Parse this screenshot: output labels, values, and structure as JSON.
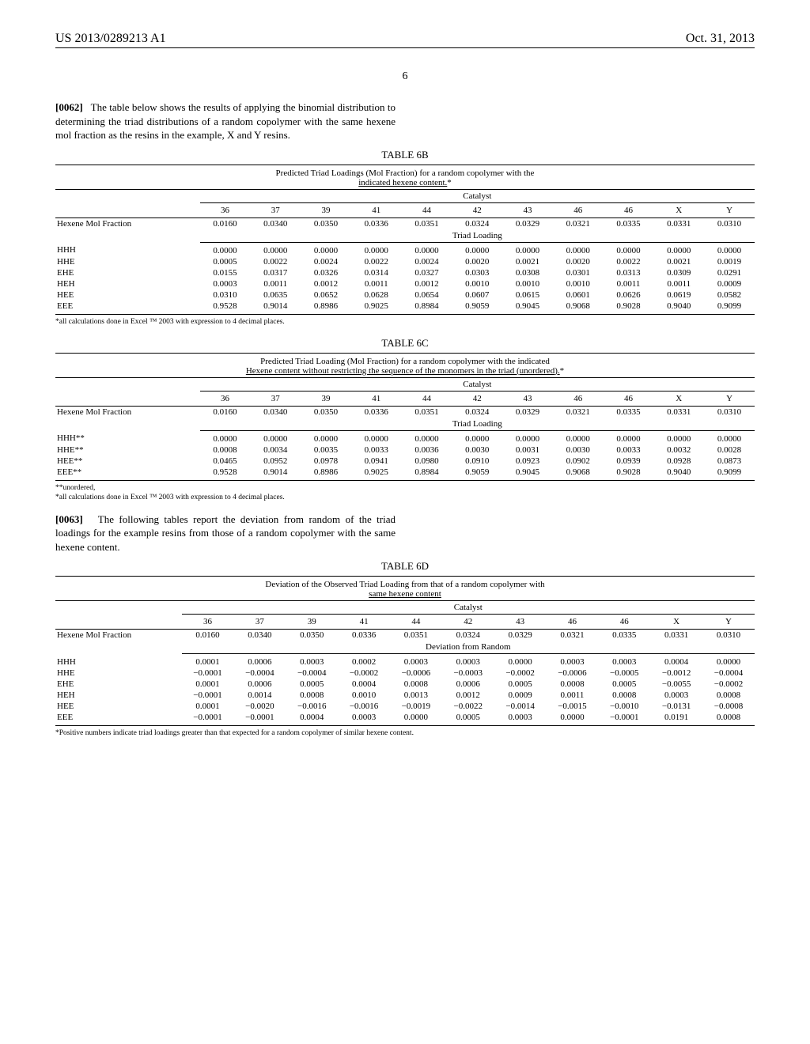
{
  "header": {
    "patent": "US 2013/0289213 A1",
    "date": "Oct. 31, 2013",
    "page": "6"
  },
  "para62": {
    "num": "[0062]",
    "text": "The table below shows the results of applying the binomial distribution to determining the triad distributions of a random copolymer with the same hexene mol fraction as the resins in the example, X and Y resins."
  },
  "para63": {
    "num": "[0063]",
    "text": "The following tables report the deviation from random of the triad loadings for the example resins from those of a random copolymer with the same hexene content."
  },
  "columns": [
    "36",
    "37",
    "39",
    "41",
    "44",
    "42",
    "43",
    "46",
    "46",
    "X",
    "Y"
  ],
  "hexene_label": "Hexene Mol Fraction",
  "hexene_label_d": "Hexene Mol Fraction",
  "catalyst_label": "Catalyst",
  "triad_loading_label": "Triad Loading",
  "deviation_label": "Deviation from Random",
  "table6b": {
    "label": "TABLE 6B",
    "caption": "Predicted Triad Loadings (Mol Fraction) for a random copolymer with the",
    "caption2": "indicated hexene content.",
    "hexene": [
      "0.0160",
      "0.0340",
      "0.0350",
      "0.0336",
      "0.0351",
      "0.0324",
      "0.0329",
      "0.0321",
      "0.0335",
      "0.0331",
      "0.0310"
    ],
    "rows": [
      {
        "label": "HHH",
        "v": [
          "0.0000",
          "0.0000",
          "0.0000",
          "0.0000",
          "0.0000",
          "0.0000",
          "0.0000",
          "0.0000",
          "0.0000",
          "0.0000",
          "0.0000"
        ]
      },
      {
        "label": "HHE",
        "v": [
          "0.0005",
          "0.0022",
          "0.0024",
          "0.0022",
          "0.0024",
          "0.0020",
          "0.0021",
          "0.0020",
          "0.0022",
          "0.0021",
          "0.0019"
        ]
      },
      {
        "label": "EHE",
        "v": [
          "0.0155",
          "0.0317",
          "0.0326",
          "0.0314",
          "0.0327",
          "0.0303",
          "0.0308",
          "0.0301",
          "0.0313",
          "0.0309",
          "0.0291"
        ]
      },
      {
        "label": "HEH",
        "v": [
          "0.0003",
          "0.0011",
          "0.0012",
          "0.0011",
          "0.0012",
          "0.0010",
          "0.0010",
          "0.0010",
          "0.0011",
          "0.0011",
          "0.0009"
        ]
      },
      {
        "label": "HEE",
        "v": [
          "0.0310",
          "0.0635",
          "0.0652",
          "0.0628",
          "0.0654",
          "0.0607",
          "0.0615",
          "0.0601",
          "0.0626",
          "0.0619",
          "0.0582"
        ]
      },
      {
        "label": "EEE",
        "v": [
          "0.9528",
          "0.9014",
          "0.8986",
          "0.9025",
          "0.8984",
          "0.9059",
          "0.9045",
          "0.9068",
          "0.9028",
          "0.9040",
          "0.9099"
        ]
      }
    ],
    "footnote": "*all calculations done in Excel ™ 2003 with expression to 4 decimal places."
  },
  "table6c": {
    "label": "TABLE 6C",
    "caption": "Predicted Triad Loading (Mol Fraction) for a random copolymer with the indicated",
    "caption2": "Hexene content without restricting the sequence of the monomers in the triad (unordered).",
    "hexene": [
      "0.0160",
      "0.0340",
      "0.0350",
      "0.0336",
      "0.0351",
      "0.0324",
      "0.0329",
      "0.0321",
      "0.0335",
      "0.0331",
      "0.0310"
    ],
    "rows": [
      {
        "label": "HHH**",
        "v": [
          "0.0000",
          "0.0000",
          "0.0000",
          "0.0000",
          "0.0000",
          "0.0000",
          "0.0000",
          "0.0000",
          "0.0000",
          "0.0000",
          "0.0000"
        ]
      },
      {
        "label": "HHE**",
        "v": [
          "0.0008",
          "0.0034",
          "0.0035",
          "0.0033",
          "0.0036",
          "0.0030",
          "0.0031",
          "0.0030",
          "0.0033",
          "0.0032",
          "0.0028"
        ]
      },
      {
        "label": "HEE**",
        "v": [
          "0.0465",
          "0.0952",
          "0.0978",
          "0.0941",
          "0.0980",
          "0.0910",
          "0.0923",
          "0.0902",
          "0.0939",
          "0.0928",
          "0.0873"
        ]
      },
      {
        "label": "EEE**",
        "v": [
          "0.9528",
          "0.9014",
          "0.8986",
          "0.9025",
          "0.8984",
          "0.9059",
          "0.9045",
          "0.9068",
          "0.9028",
          "0.9040",
          "0.9099"
        ]
      }
    ],
    "footnote1": "**unordered,",
    "footnote2": "*all calculations done in Excel ™ 2003 with expression to 4 decimal places."
  },
  "table6d": {
    "label": "TABLE 6D",
    "caption": "Deviation of the Observed Triad Loading from that of a random copolymer with",
    "caption2": "same hexene content",
    "hexene": [
      "0.0160",
      "0.0340",
      "0.0350",
      "0.0336",
      "0.0351",
      "0.0324",
      "0.0329",
      "0.0321",
      "0.0335",
      "0.0331",
      "0.0310"
    ],
    "rows": [
      {
        "label": "HHH",
        "v": [
          "0.0001",
          "0.0006",
          "0.0003",
          "0.0002",
          "0.0003",
          "0.0003",
          "0.0000",
          "0.0003",
          "0.0003",
          "0.0004",
          "0.0000"
        ]
      },
      {
        "label": "HHE",
        "v": [
          "−0.0001",
          "−0.0004",
          "−0.0004",
          "−0.0002",
          "−0.0006",
          "−0.0003",
          "−0.0002",
          "−0.0006",
          "−0.0005",
          "−0.0012",
          "−0.0004"
        ]
      },
      {
        "label": "EHE",
        "v": [
          "0.0001",
          "0.0006",
          "0.0005",
          "0.0004",
          "0.0008",
          "0.0006",
          "0.0005",
          "0.0008",
          "0.0005",
          "−0.0055",
          "−0.0002"
        ]
      },
      {
        "label": "HEH",
        "v": [
          "−0.0001",
          "0.0014",
          "0.0008",
          "0.0010",
          "0.0013",
          "0.0012",
          "0.0009",
          "0.0011",
          "0.0008",
          "0.0003",
          "0.0008"
        ]
      },
      {
        "label": "HEE",
        "v": [
          "0.0001",
          "−0.0020",
          "−0.0016",
          "−0.0016",
          "−0.0019",
          "−0.0022",
          "−0.0014",
          "−0.0015",
          "−0.0010",
          "−0.0131",
          "−0.0008"
        ]
      },
      {
        "label": "EEE",
        "v": [
          "−0.0001",
          "−0.0001",
          "0.0004",
          "0.0003",
          "0.0000",
          "0.0005",
          "0.0003",
          "0.0000",
          "−0.0001",
          "0.0191",
          "0.0008"
        ]
      }
    ],
    "footnote": "*Positive numbers indicate triad loadings greater than that expected for a random copolymer of similar hexene content."
  }
}
